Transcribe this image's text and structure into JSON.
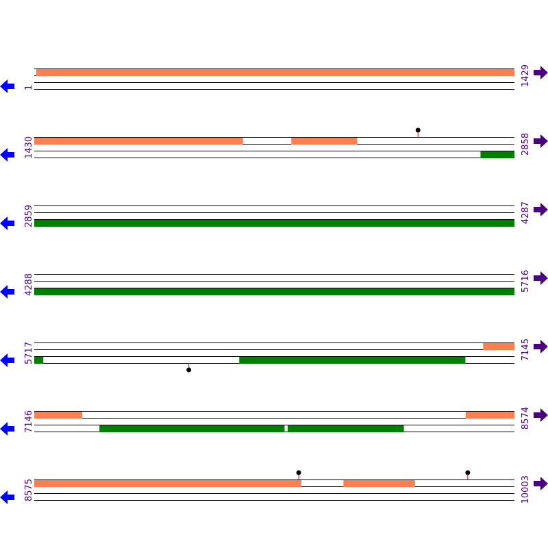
{
  "colors": {
    "forward_feature": "#ff7f50",
    "reverse_feature": "#008000",
    "left_arrow": "#0000ff",
    "right_arrow": "#4b0082",
    "position_label": "#4b0082",
    "track_line": "#000000",
    "marker": "#000000",
    "marker_stem": "#ff0000"
  },
  "icons": {
    "left_arrow": "arrow-left-icon",
    "right_arrow": "arrow-right-icon"
  },
  "rows": [
    {
      "start": "1",
      "end": "1429",
      "start_pos": 1,
      "end_pos": 1429,
      "forward_features": [
        {
          "from": 7,
          "to": 1429
        }
      ],
      "reverse_features": [],
      "markers": []
    },
    {
      "start": "1430",
      "end": "2858",
      "start_pos": 1430,
      "end_pos": 2858,
      "forward_features": [
        {
          "from": 1430,
          "to": 2050
        },
        {
          "from": 2195,
          "to": 2390
        }
      ],
      "reverse_features": [
        {
          "from": 2758,
          "to": 2858
        }
      ],
      "markers": [
        {
          "pos": 2572,
          "side": "top"
        }
      ]
    },
    {
      "start": "2859",
      "end": "4287",
      "start_pos": 2859,
      "end_pos": 4287,
      "forward_features": [],
      "reverse_features": [
        {
          "from": 2859,
          "to": 4287
        }
      ],
      "markers": []
    },
    {
      "start": "4288",
      "end": "5716",
      "start_pos": 4288,
      "end_pos": 5716,
      "forward_features": [],
      "reverse_features": [
        {
          "from": 4288,
          "to": 5716
        }
      ],
      "markers": []
    },
    {
      "start": "5717",
      "end": "7145",
      "start_pos": 5717,
      "end_pos": 7145,
      "forward_features": [
        {
          "from": 7053,
          "to": 7145
        }
      ],
      "reverse_features": [
        {
          "from": 5717,
          "to": 5743
        },
        {
          "from": 6327,
          "to": 6999
        }
      ],
      "markers": [
        {
          "pos": 6177,
          "side": "bottom"
        }
      ]
    },
    {
      "start": "7146",
      "end": "8574",
      "start_pos": 7146,
      "end_pos": 8574,
      "forward_features": [
        {
          "from": 7146,
          "to": 7288
        },
        {
          "from": 8430,
          "to": 8574
        }
      ],
      "reverse_features": [
        {
          "from": 7340,
          "to": 7890
        },
        {
          "from": 7900,
          "to": 8245
        }
      ],
      "markers": []
    },
    {
      "start": "8575",
      "end": "10003",
      "start_pos": 8575,
      "end_pos": 10003,
      "forward_features": [
        {
          "from": 8575,
          "to": 9369
        },
        {
          "from": 9495,
          "to": 9707
        }
      ],
      "reverse_features": [],
      "markers": [
        {
          "pos": 9362,
          "side": "top"
        },
        {
          "pos": 9865,
          "side": "top"
        }
      ]
    }
  ]
}
